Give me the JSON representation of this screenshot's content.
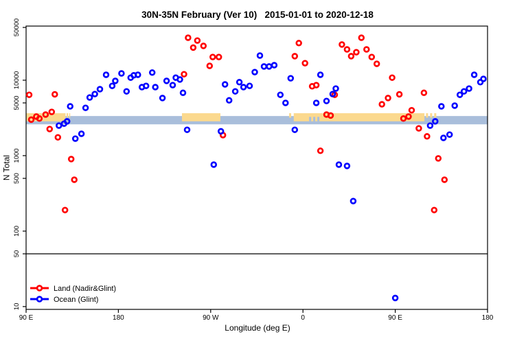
{
  "title": "30N-35N February (Ver 10)   2015-01-01 to 2020-12-18",
  "chart_data": {
    "type": "scatter",
    "title": "30N-35N February (Ver 10)   2015-01-01 to 2020-12-18",
    "xlabel": "Longitude (deg E)",
    "ylabel": "N Total",
    "y_scale": "log10",
    "ylim": [
      10,
      50000
    ],
    "y_ticks": [
      50000,
      10000,
      5000,
      1000,
      500,
      100,
      50,
      10
    ],
    "x_axis": {
      "span_deg_east": [
        90,
        540
      ],
      "note": "axis runs eastward from 90E around the globe and past 90E again to 180; 90E-180E longitudes appear at both ends",
      "ticks": [
        {
          "deg": 90,
          "label": "90 E"
        },
        {
          "deg": 180,
          "label": "180"
        },
        {
          "deg": 270,
          "label": "90 W"
        },
        {
          "deg": 360,
          "label": "0"
        },
        {
          "deg": 450,
          "label": "90 E"
        },
        {
          "deg": 540,
          "label": "180"
        }
      ]
    },
    "reference_line": {
      "n": 50,
      "color": "#000000"
    },
    "bands": {
      "ocean_band": {
        "color": "#a9bedb",
        "deg": [
          90,
          540
        ],
        "n_range": [
          2600,
          3350
        ]
      },
      "land_band": {
        "color": "#fbd98e",
        "n_range": [
          2850,
          3650
        ],
        "segments_deg": [
          [
            90,
            128.5
          ],
          [
            242,
            279.5
          ],
          [
            351,
            478.5
          ]
        ],
        "specks_deg": [
          [
            129.5,
            131
          ],
          [
            132,
            133
          ],
          [
            346.5,
            348.5
          ],
          [
            480,
            482
          ],
          [
            484,
            486
          ],
          [
            488,
            490
          ]
        ],
        "ocean_specks_deg": [
          [
            366,
            368
          ],
          [
            370,
            372
          ],
          [
            374,
            376
          ]
        ]
      }
    },
    "legend": {
      "position": "bottom-left",
      "entries": [
        {
          "label": "Land (Nadir&Glint)",
          "color": "#ff0000"
        },
        {
          "label": "Ocean (Glint)",
          "color": "#0000ff"
        }
      ]
    },
    "series": [
      {
        "name": "Land (Nadir&Glint)",
        "color": "#ff0000",
        "points_deg_n": [
          [
            93,
            6400
          ],
          [
            95,
            3000
          ],
          [
            100,
            3300
          ],
          [
            103,
            3100
          ],
          [
            109,
            3500
          ],
          [
            113,
            2250
          ],
          [
            115,
            3800
          ],
          [
            118,
            6500
          ],
          [
            121,
            1750
          ],
          [
            128,
            190
          ],
          [
            134,
            900
          ],
          [
            137,
            480
          ],
          [
            244,
            12000
          ],
          [
            248,
            36500
          ],
          [
            253,
            27000
          ],
          [
            257,
            33500
          ],
          [
            263,
            28500
          ],
          [
            269,
            15500
          ],
          [
            272,
            20300
          ],
          [
            278,
            20300
          ],
          [
            282,
            1870
          ],
          [
            352,
            20800
          ],
          [
            356,
            31000
          ],
          [
            362,
            16800
          ],
          [
            369,
            8300
          ],
          [
            373,
            8600
          ],
          [
            377,
            1160
          ],
          [
            383,
            3500
          ],
          [
            387,
            3400
          ],
          [
            391,
            6400
          ],
          [
            398,
            29700
          ],
          [
            403,
            25600
          ],
          [
            407,
            20800
          ],
          [
            412,
            23500
          ],
          [
            417,
            36500
          ],
          [
            422,
            25600
          ],
          [
            427,
            20300
          ],
          [
            432,
            16500
          ],
          [
            437,
            4800
          ],
          [
            443,
            5800
          ],
          [
            447,
            10800
          ],
          [
            454,
            6500
          ],
          [
            458,
            3100
          ],
          [
            463,
            3300
          ],
          [
            466,
            4000
          ],
          [
            473,
            2300
          ],
          [
            478,
            6800
          ],
          [
            481,
            1800
          ],
          [
            488,
            190
          ],
          [
            492,
            920
          ],
          [
            498,
            480
          ]
        ]
      },
      {
        "name": "Ocean (Glint)",
        "color": "#0000ff",
        "points_deg_n": [
          [
            122,
            2500
          ],
          [
            127,
            2650
          ],
          [
            130,
            2850
          ],
          [
            133,
            4500
          ],
          [
            138,
            1680
          ],
          [
            144,
            1950
          ],
          [
            148,
            4300
          ],
          [
            152,
            5900
          ],
          [
            157,
            6550
          ],
          [
            162,
            7600
          ],
          [
            168,
            11800
          ],
          [
            174,
            8400
          ],
          [
            177,
            9800
          ],
          [
            183,
            12300
          ],
          [
            188,
            7100
          ],
          [
            192,
            10800
          ],
          [
            195,
            11600
          ],
          [
            199,
            11800
          ],
          [
            203,
            8100
          ],
          [
            207,
            8400
          ],
          [
            213,
            12600
          ],
          [
            216,
            8100
          ],
          [
            223,
            5800
          ],
          [
            227,
            9800
          ],
          [
            233,
            8600
          ],
          [
            236,
            10800
          ],
          [
            240,
            10200
          ],
          [
            243,
            6800
          ],
          [
            247,
            2200
          ],
          [
            273,
            760
          ],
          [
            280,
            2100
          ],
          [
            284,
            8800
          ],
          [
            288,
            5400
          ],
          [
            294,
            7100
          ],
          [
            298,
            9400
          ],
          [
            302,
            8100
          ],
          [
            308,
            8400
          ],
          [
            313,
            12800
          ],
          [
            318,
            21200
          ],
          [
            322,
            15200
          ],
          [
            327,
            15200
          ],
          [
            332,
            15800
          ],
          [
            338,
            6400
          ],
          [
            343,
            5000
          ],
          [
            348,
            10600
          ],
          [
            352,
            2200
          ],
          [
            373,
            5000
          ],
          [
            377,
            11800
          ],
          [
            383,
            5300
          ],
          [
            389,
            6550
          ],
          [
            392,
            7750
          ],
          [
            395,
            760
          ],
          [
            403,
            730
          ],
          [
            409,
            250
          ],
          [
            450,
            13
          ],
          [
            484,
            2500
          ],
          [
            489,
            2850
          ],
          [
            495,
            4500
          ],
          [
            497,
            1720
          ],
          [
            503,
            1900
          ],
          [
            508,
            4600
          ],
          [
            513,
            6400
          ],
          [
            517,
            7100
          ],
          [
            522,
            7750
          ],
          [
            527,
            11800
          ],
          [
            533,
            9400
          ],
          [
            536,
            10400
          ]
        ]
      }
    ]
  }
}
